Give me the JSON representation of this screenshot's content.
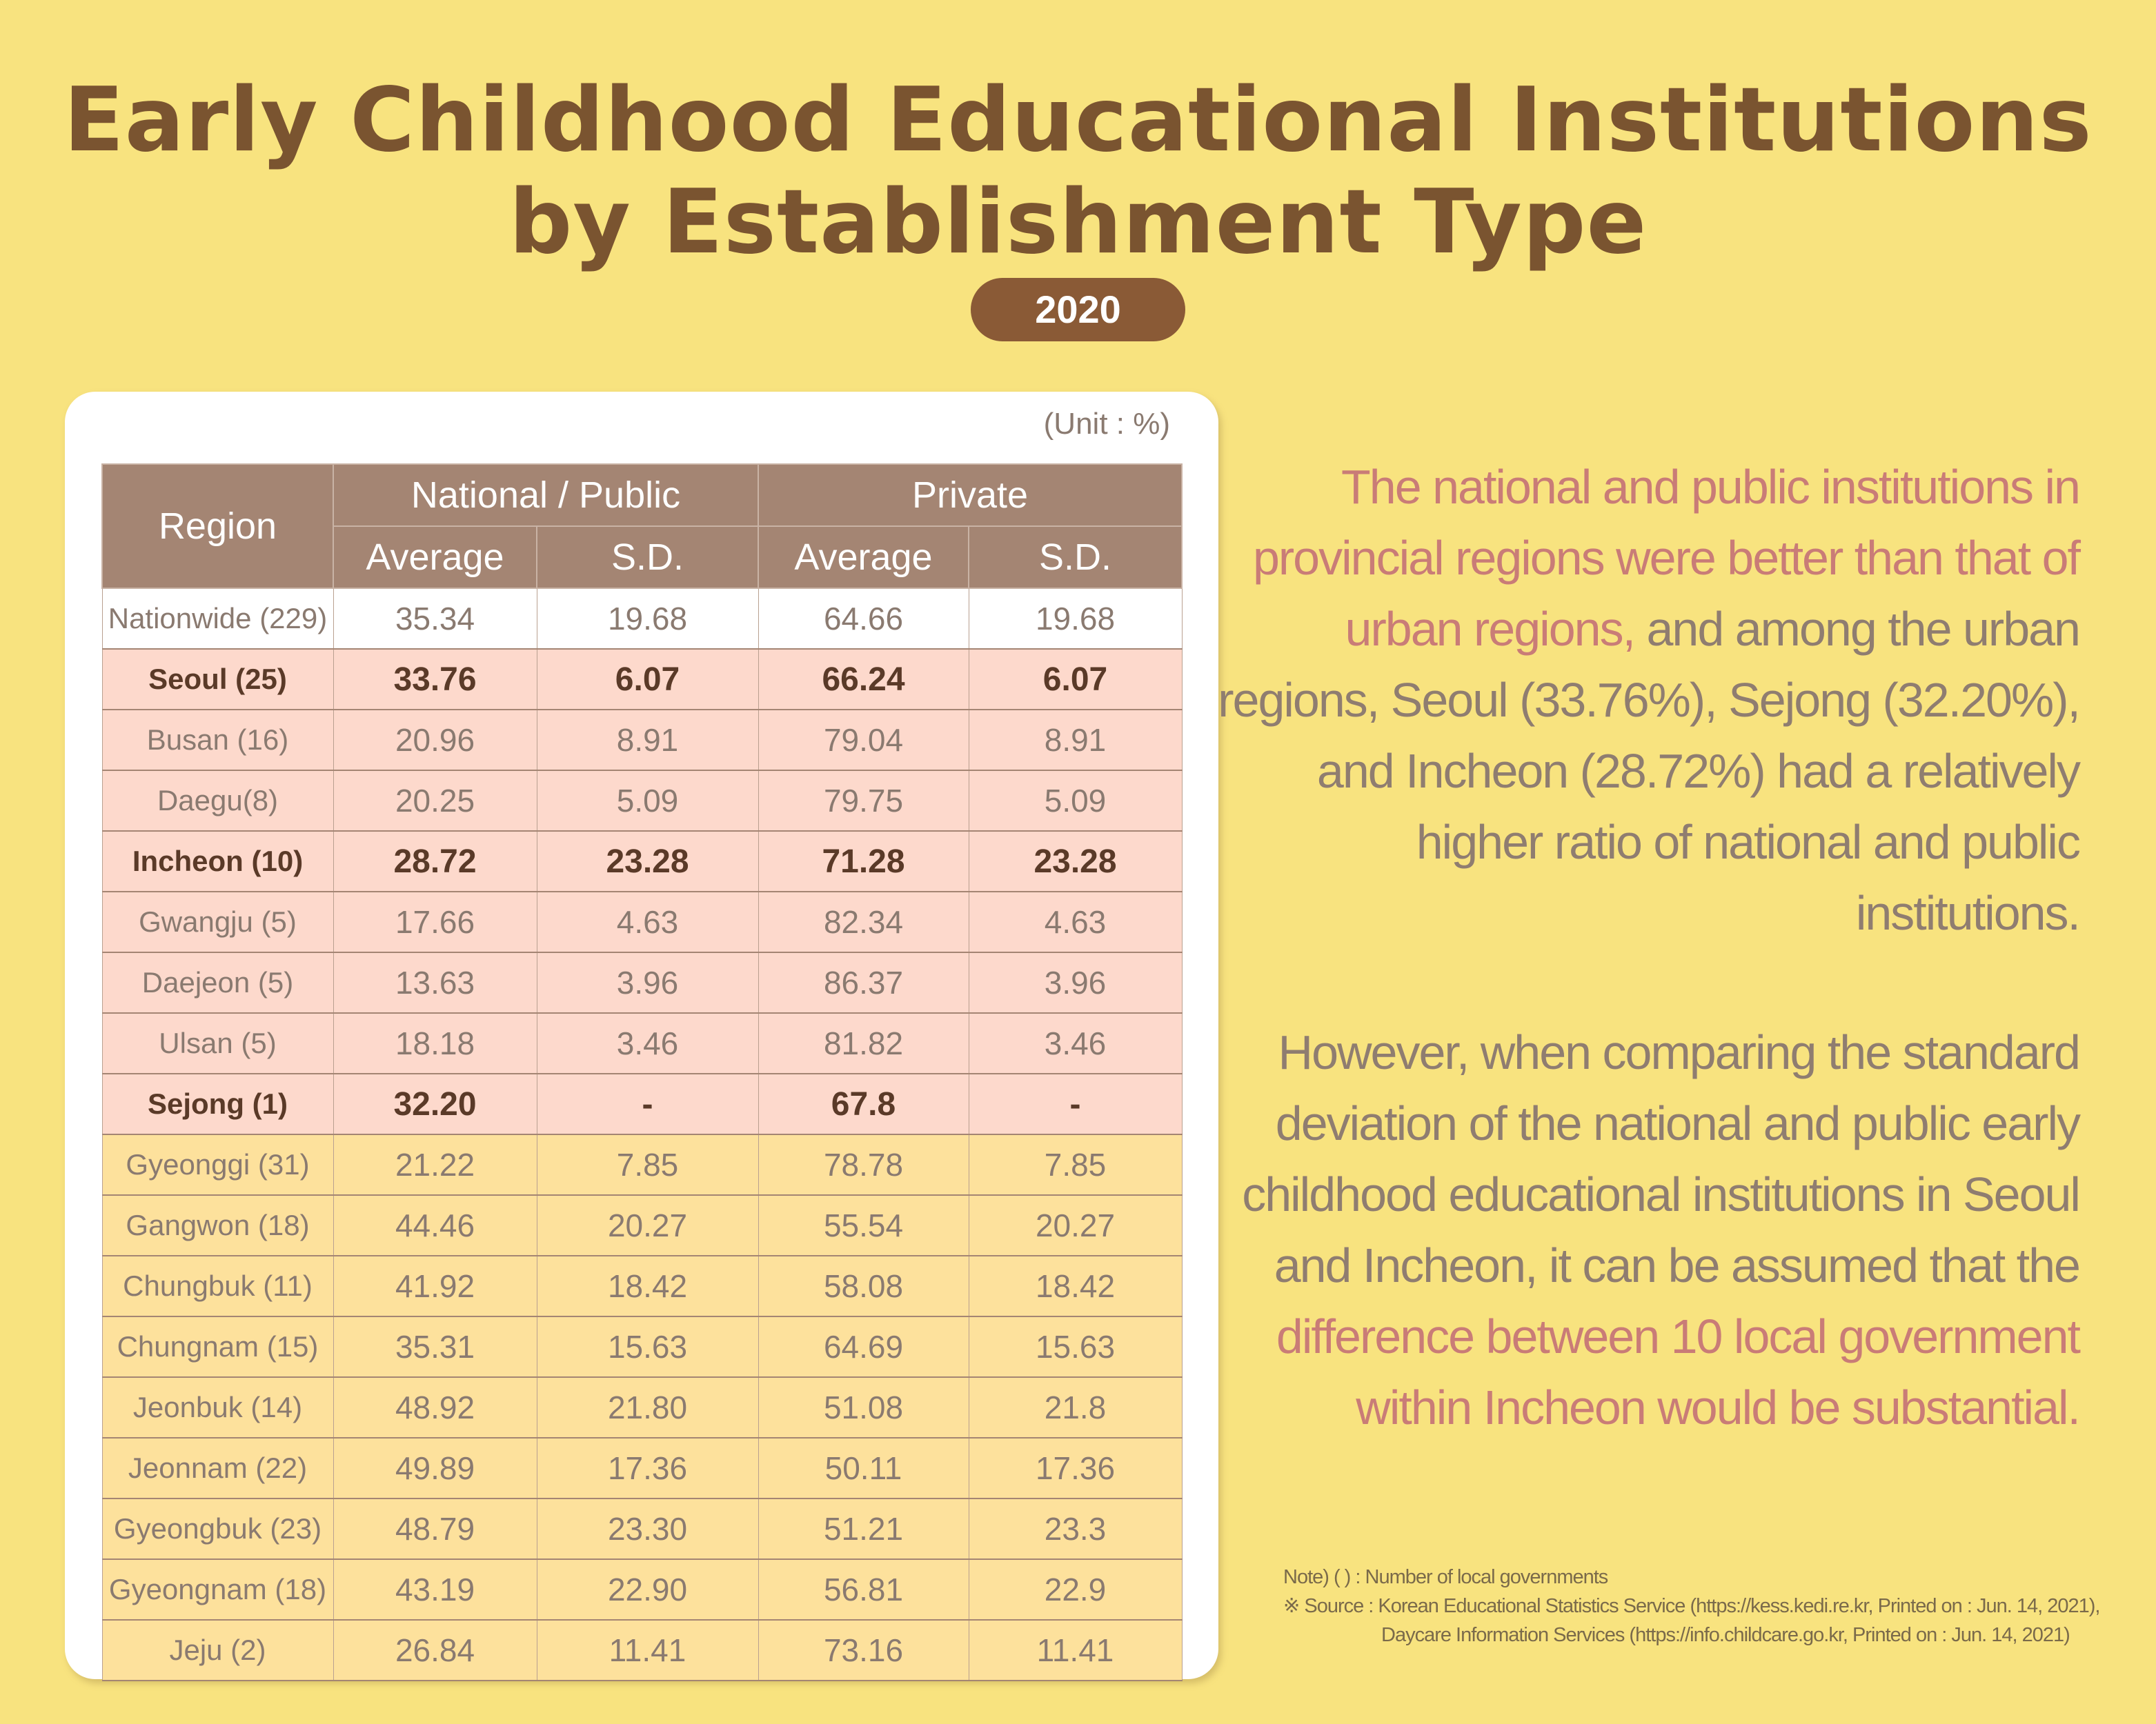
{
  "title": {
    "line1": "Early Childhood Educational Institutions",
    "line2": "by Establishment Type"
  },
  "year": "2020",
  "table": {
    "unit": "(Unit : %)",
    "headers": {
      "region": "Region",
      "national_public": "National / Public",
      "private": "Private",
      "average": "Average",
      "sd": "S.D."
    },
    "rows": [
      {
        "region": "Nationwide (229)",
        "np_avg": "35.34",
        "np_sd": "19.68",
        "pr_avg": "64.66",
        "pr_sd": "19.68",
        "group": "white",
        "bold": false
      },
      {
        "region": "Seoul (25)",
        "np_avg": "33.76",
        "np_sd": "6.07",
        "pr_avg": "66.24",
        "pr_sd": "6.07",
        "group": "pink",
        "bold": true
      },
      {
        "region": "Busan (16)",
        "np_avg": "20.96",
        "np_sd": "8.91",
        "pr_avg": "79.04",
        "pr_sd": "8.91",
        "group": "pink",
        "bold": false
      },
      {
        "region": "Daegu(8)",
        "np_avg": "20.25",
        "np_sd": "5.09",
        "pr_avg": "79.75",
        "pr_sd": "5.09",
        "group": "pink",
        "bold": false
      },
      {
        "region": "Incheon (10)",
        "np_avg": "28.72",
        "np_sd": "23.28",
        "pr_avg": "71.28",
        "pr_sd": "23.28",
        "group": "pink",
        "bold": true
      },
      {
        "region": "Gwangju (5)",
        "np_avg": "17.66",
        "np_sd": "4.63",
        "pr_avg": "82.34",
        "pr_sd": "4.63",
        "group": "pink",
        "bold": false
      },
      {
        "region": "Daejeon (5)",
        "np_avg": "13.63",
        "np_sd": "3.96",
        "pr_avg": "86.37",
        "pr_sd": "3.96",
        "group": "pink",
        "bold": false
      },
      {
        "region": "Ulsan (5)",
        "np_avg": "18.18",
        "np_sd": "3.46",
        "pr_avg": "81.82",
        "pr_sd": "3.46",
        "group": "pink",
        "bold": false
      },
      {
        "region": "Sejong (1)",
        "np_avg": "32.20",
        "np_sd": "-",
        "pr_avg": "67.8",
        "pr_sd": "-",
        "group": "pink",
        "bold": true
      },
      {
        "region": "Gyeonggi (31)",
        "np_avg": "21.22",
        "np_sd": "7.85",
        "pr_avg": "78.78",
        "pr_sd": "7.85",
        "group": "yellow",
        "bold": false
      },
      {
        "region": "Gangwon (18)",
        "np_avg": "44.46",
        "np_sd": "20.27",
        "pr_avg": "55.54",
        "pr_sd": "20.27",
        "group": "yellow",
        "bold": false
      },
      {
        "region": "Chungbuk (11)",
        "np_avg": "41.92",
        "np_sd": "18.42",
        "pr_avg": "58.08",
        "pr_sd": "18.42",
        "group": "yellow",
        "bold": false
      },
      {
        "region": "Chungnam (15)",
        "np_avg": "35.31",
        "np_sd": "15.63",
        "pr_avg": "64.69",
        "pr_sd": "15.63",
        "group": "yellow",
        "bold": false
      },
      {
        "region": "Jeonbuk (14)",
        "np_avg": "48.92",
        "np_sd": "21.80",
        "pr_avg": "51.08",
        "pr_sd": "21.8",
        "group": "yellow",
        "bold": false
      },
      {
        "region": "Jeonnam (22)",
        "np_avg": "49.89",
        "np_sd": "17.36",
        "pr_avg": "50.11",
        "pr_sd": "17.36",
        "group": "yellow",
        "bold": false
      },
      {
        "region": "Gyeongbuk (23)",
        "np_avg": "48.79",
        "np_sd": "23.30",
        "pr_avg": "51.21",
        "pr_sd": "23.3",
        "group": "yellow",
        "bold": false
      },
      {
        "region": "Gyeongnam (18)",
        "np_avg": "43.19",
        "np_sd": "22.90",
        "pr_avg": "56.81",
        "pr_sd": "22.9",
        "group": "yellow",
        "bold": false
      },
      {
        "region": "Jeju (2)",
        "np_avg": "26.84",
        "np_sd": "11.41",
        "pr_avg": "73.16",
        "pr_sd": "11.41",
        "group": "yellow",
        "bold": false
      }
    ]
  },
  "commentary": {
    "p1": [
      {
        "text": "The national and public institutions in provincial regions were better than that of urban regions,",
        "em": true
      },
      {
        "text": " and among the urban regions, Seoul (33.76%), Sejong (32.20%), and Incheon (28.72%) had a relatively higher ratio of national and public institutions.",
        "em": false
      }
    ],
    "p2": [
      {
        "text": "However, when comparing the standard deviation of the national and public early childhood educational institutions in Seoul and Incheon, it can be assumed that the ",
        "em": false
      },
      {
        "text": "difference between 10 local government within Incheon would be substantial.",
        "em": true
      }
    ]
  },
  "notes": {
    "note": "Note) (  ) : Number of local governments",
    "source1": "※ Source : Korean Educational Statistics Service (https://kess.kedi.re.kr, Printed on : Jun. 14, 2021),",
    "source2": "Daycare Information Services (https://info.childcare.go.kr, Printed on : Jun. 14, 2021)"
  },
  "colors": {
    "background": "#f8e37f",
    "title": "#7a5430",
    "header": "#a48573",
    "urban": "#fdd9cc",
    "provincial": "#fde19c",
    "emphasis": "#c97c77"
  }
}
